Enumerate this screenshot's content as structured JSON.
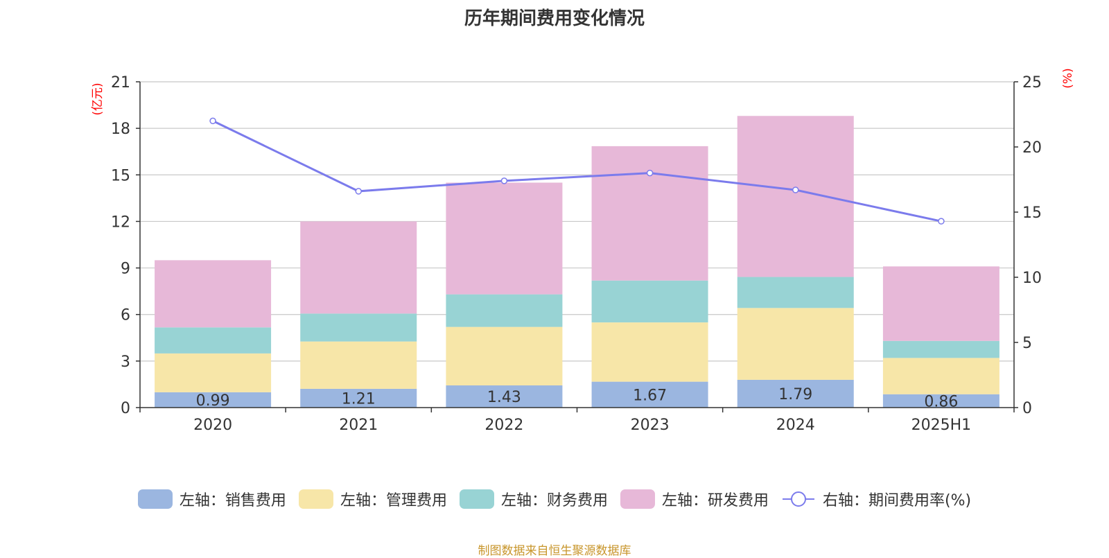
{
  "title": "历年期间费用变化情况",
  "source": "制图数据来自恒生聚源数据库",
  "colors": {
    "sales": "#9bb6e0",
    "admin": "#f7e6a8",
    "finance": "#98d3d4",
    "rd": "#e7b8d8",
    "rate": "#7b7bec",
    "axis_unit": "#ff0000",
    "grid": "#c8c8c8",
    "axis": "#333333"
  },
  "chart_data": {
    "type": "bar",
    "stacked": true,
    "categories": [
      "2020",
      "2021",
      "2022",
      "2023",
      "2024",
      "2025H1"
    ],
    "y_left": {
      "label": "(亿元)",
      "range": [
        0,
        21
      ],
      "ticks": [
        0,
        3,
        6,
        9,
        12,
        15,
        18,
        21
      ]
    },
    "y_right": {
      "label": "(%)",
      "range": [
        0,
        25
      ],
      "ticks": [
        0,
        5,
        10,
        15,
        20,
        25
      ]
    },
    "series": [
      {
        "name": "左轴：销售费用",
        "type": "bar",
        "axis": "left",
        "color_key": "sales",
        "values": [
          0.99,
          1.21,
          1.43,
          1.67,
          1.79,
          0.86
        ],
        "show_labels": true
      },
      {
        "name": "左轴：管理费用",
        "type": "bar",
        "axis": "left",
        "color_key": "admin",
        "values": [
          2.5,
          3.05,
          3.77,
          3.82,
          4.63,
          2.34
        ]
      },
      {
        "name": "左轴：财务费用",
        "type": "bar",
        "axis": "left",
        "color_key": "finance",
        "values": [
          1.68,
          1.8,
          2.1,
          2.7,
          2.0,
          1.1
        ]
      },
      {
        "name": "左轴：研发费用",
        "type": "bar",
        "axis": "left",
        "color_key": "rd",
        "values": [
          4.33,
          5.94,
          7.2,
          8.66,
          10.38,
          4.8
        ]
      },
      {
        "name": "右轴：期间费用率(%)",
        "type": "line",
        "axis": "right",
        "color_key": "rate",
        "values": [
          22.0,
          16.6,
          17.4,
          18.0,
          16.7,
          14.3
        ]
      }
    ],
    "grid": true,
    "legend_position": "bottom"
  }
}
